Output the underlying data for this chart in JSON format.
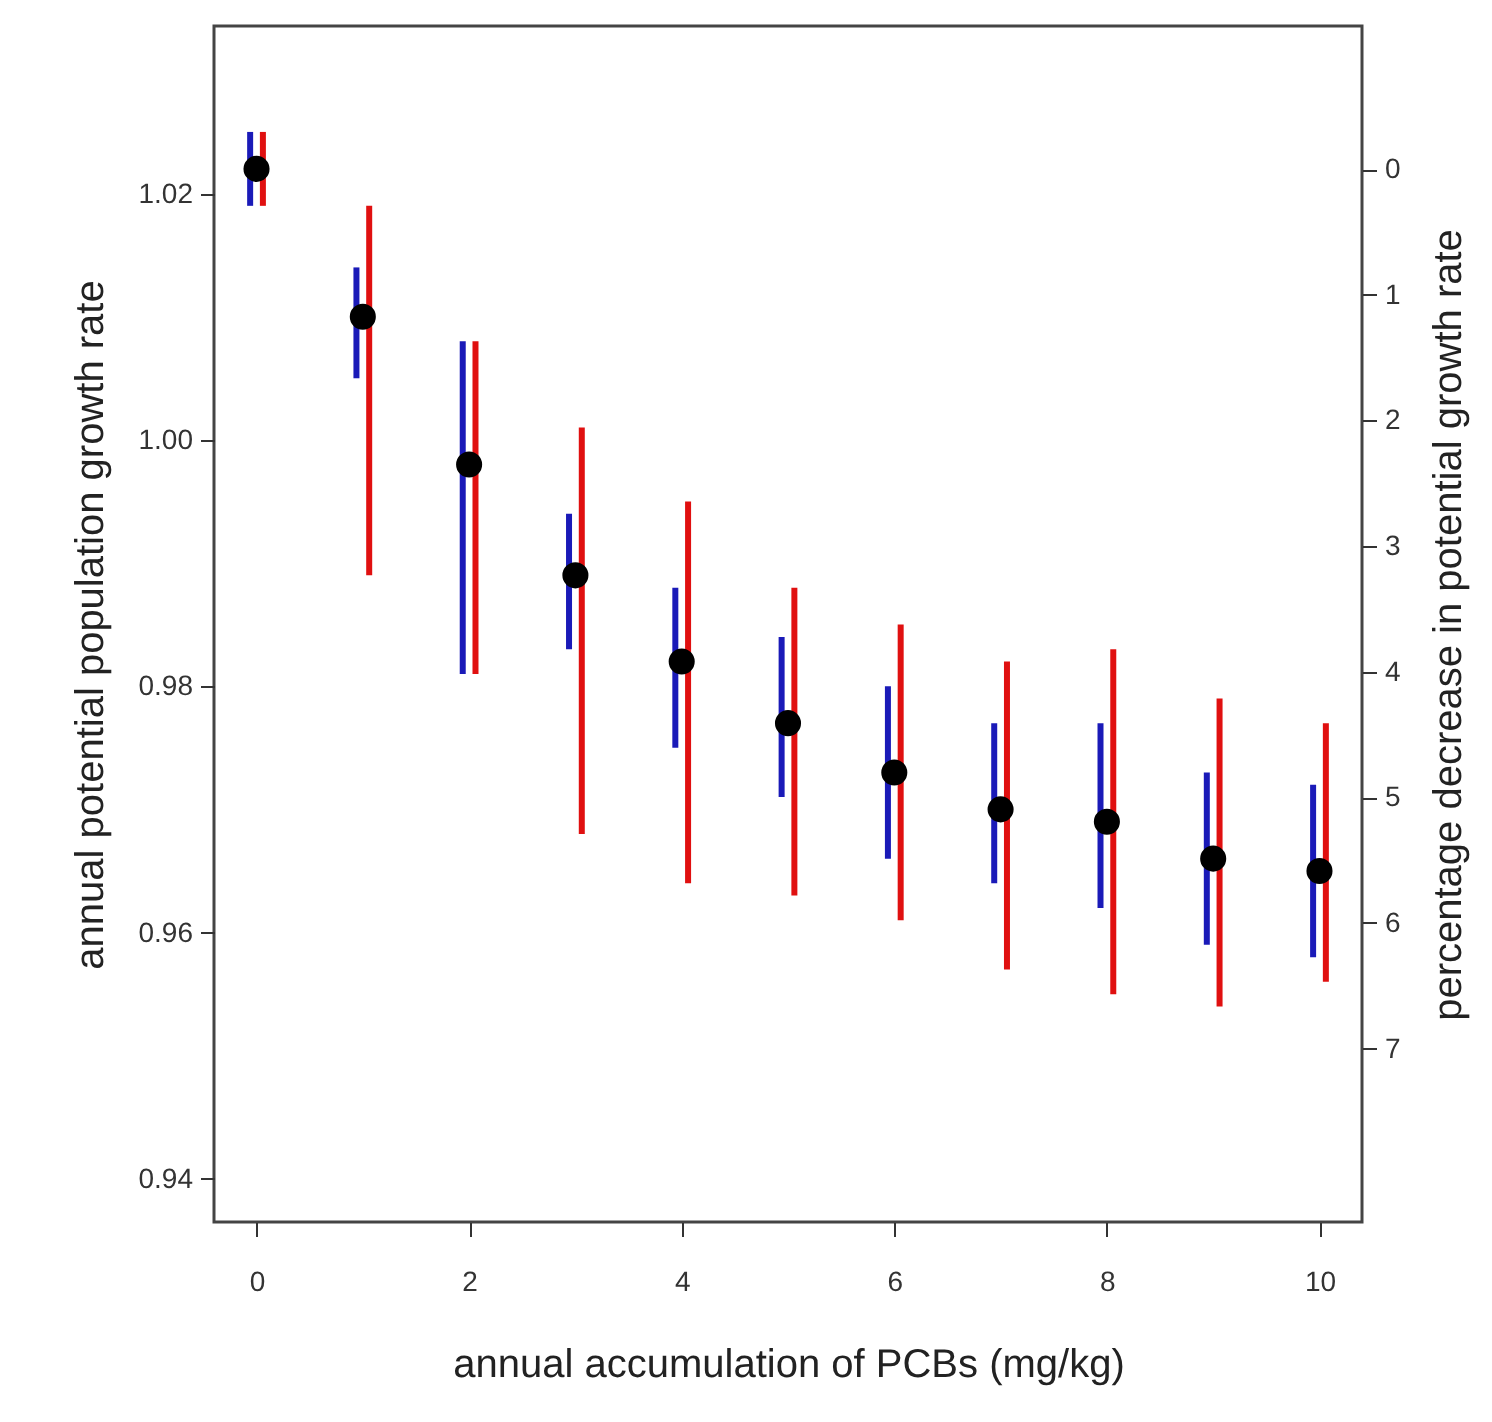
{
  "chart_data": {
    "type": "scatter",
    "xlabel": "annual accumulation of PCBs (mg/kg)",
    "ylabel": "annual potential population growth rate",
    "y2label": "percentage decrease in potential growth rate",
    "xlim": [
      -0.4,
      10.4
    ],
    "xticks": [
      0,
      2,
      4,
      6,
      8,
      10
    ],
    "ylim": [
      0.9365,
      1.0336
    ],
    "yticks": [
      0.94,
      0.96,
      0.98,
      {
        "value": 1,
        "label": "1.00"
      },
      1.02
    ],
    "y2lim": [
      8.38,
      -1.14
    ],
    "y2ticks": [
      0,
      1,
      2,
      3,
      4,
      5,
      6,
      7
    ],
    "grid": false,
    "series": [
      {
        "type": "bar",
        "color": "#1a1ab8",
        "x": [
          -0.06,
          0.94,
          1.94,
          2.94,
          3.94,
          4.94,
          5.94,
          6.94,
          7.94,
          8.94,
          9.94
        ],
        "base": [
          1.019,
          1.005,
          0.981,
          0.983,
          0.975,
          0.971,
          0.966,
          0.964,
          0.962,
          0.959,
          0.958
        ],
        "values": [
          0.006,
          0.009,
          0.027,
          0.011,
          0.013,
          0.013,
          0.014,
          0.013,
          0.015,
          0.014,
          0.014
        ]
      },
      {
        "type": "bar",
        "color": "#e01010",
        "x": [
          0.06,
          1.06,
          2.06,
          3.06,
          4.06,
          5.06,
          6.06,
          7.06,
          8.06,
          9.06,
          10.06
        ],
        "base": [
          1.019,
          0.989,
          0.981,
          0.968,
          0.964,
          0.963,
          0.961,
          0.957,
          0.955,
          0.954,
          0.956
        ],
        "values": [
          0.006,
          0.03,
          0.027,
          0.033,
          0.031,
          0.025,
          0.024,
          0.025,
          0.028,
          0.025,
          0.021
        ]
      },
      {
        "color": "#000000",
        "marker": "circle",
        "x": [
          0,
          1,
          2,
          3,
          4,
          5,
          6,
          7,
          8,
          9,
          10
        ],
        "values": [
          1.022,
          1.01,
          0.998,
          0.989,
          0.982,
          0.977,
          0.973,
          0.97,
          0.969,
          0.966,
          0.965
        ]
      }
    ]
  }
}
